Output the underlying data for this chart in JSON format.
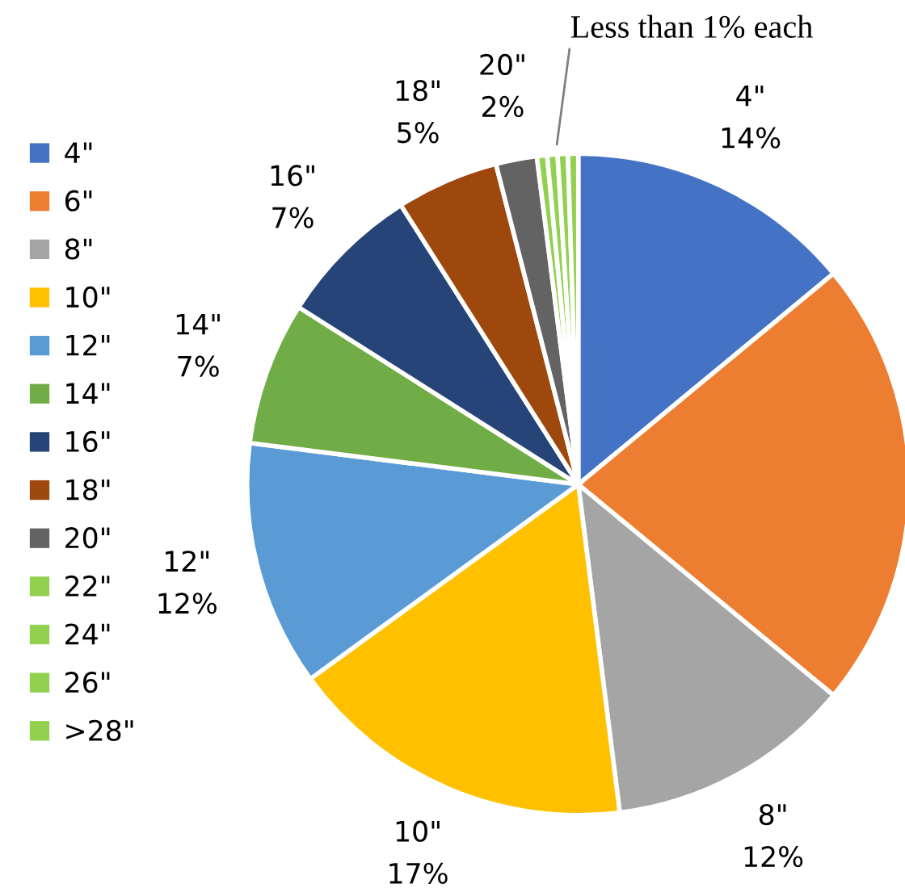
{
  "chart_data": {
    "type": "pie",
    "categories": [
      "4\"",
      "6\"",
      "8\"",
      "10\"",
      "12\"",
      "14\"",
      "16\"",
      "18\"",
      "20\"",
      "22\"",
      "24\"",
      "26\"",
      ">28\""
    ],
    "values": [
      14,
      22,
      12,
      17,
      12,
      7,
      7,
      5,
      2,
      0.5,
      0.5,
      0.5,
      0.5
    ],
    "colors": [
      "#4472c4",
      "#ed7d31",
      "#a5a5a5",
      "#ffc000",
      "#5b9bd5",
      "#70ad47",
      "#264478",
      "#9e480e",
      "#636363",
      "#92d050",
      "#92d050",
      "#92d050",
      "#92d050"
    ],
    "value_labels": [
      "14%",
      null,
      "12%",
      "17%",
      "12%",
      "7%",
      "7%",
      "5%",
      "2%",
      null,
      null,
      null,
      null
    ],
    "annotations": [
      "Less than 1% each"
    ],
    "legend": "left"
  }
}
